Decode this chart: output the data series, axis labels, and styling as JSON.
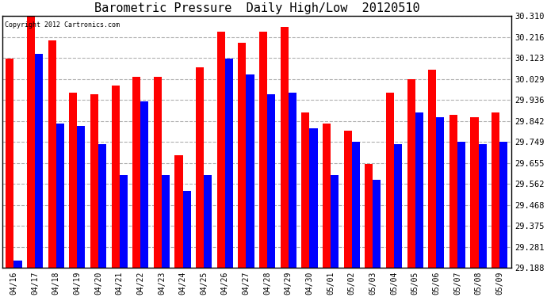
{
  "title": "Barometric Pressure  Daily High/Low  20120510",
  "copyright": "Copyright 2012 Cartronics.com",
  "ylabel_right_ticks": [
    29.188,
    29.281,
    29.375,
    29.468,
    29.562,
    29.655,
    29.749,
    29.842,
    29.936,
    30.029,
    30.123,
    30.216,
    30.31
  ],
  "dates": [
    "04/16",
    "04/17",
    "04/18",
    "04/19",
    "04/20",
    "04/21",
    "04/22",
    "04/23",
    "04/24",
    "04/25",
    "04/26",
    "04/27",
    "04/28",
    "04/29",
    "04/30",
    "05/01",
    "05/02",
    "05/03",
    "05/04",
    "05/05",
    "05/06",
    "05/07",
    "05/08",
    "05/09"
  ],
  "highs": [
    30.12,
    30.31,
    30.2,
    29.97,
    29.96,
    30.0,
    30.04,
    30.04,
    29.69,
    30.08,
    30.24,
    30.19,
    30.24,
    30.26,
    29.88,
    29.83,
    29.8,
    29.65,
    29.97,
    30.03,
    30.07,
    29.87,
    29.86,
    29.88
  ],
  "lows": [
    29.22,
    30.14,
    29.83,
    29.82,
    29.74,
    29.6,
    29.93,
    29.6,
    29.53,
    29.6,
    30.12,
    30.05,
    29.96,
    29.97,
    29.81,
    29.6,
    29.75,
    29.58,
    29.74,
    29.88,
    29.86,
    29.75,
    29.74,
    29.75
  ],
  "high_color": "#ff0000",
  "low_color": "#0000ff",
  "bg_color": "#ffffff",
  "grid_color": "#b0b0b0",
  "title_fontsize": 11,
  "bar_width": 0.38,
  "ylim_min": 29.188,
  "ylim_max": 30.31
}
